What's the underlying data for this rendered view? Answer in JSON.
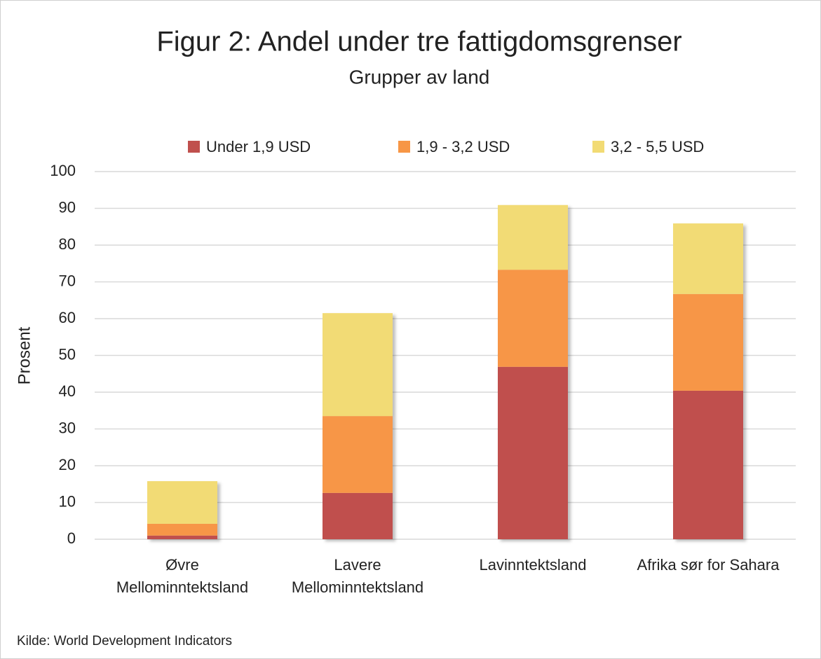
{
  "chart_data": {
    "type": "stacked_bar",
    "title": "Figur 2: Andel under tre fattigdomsgrenser",
    "subtitle": "Grupper av land",
    "y_label": "Prosent",
    "source": "Kilde: World Development Indicators",
    "categories": [
      "Øvre\nMellominntektsland",
      "Lavere\nMellominntektsland",
      "Lavinntektsland",
      "Afrika sør for Sahara"
    ],
    "series": [
      {
        "name": "Under 1,9 USD",
        "color": "#c0504d",
        "values": [
          1.0,
          12.6,
          46.9,
          40.4
        ]
      },
      {
        "name": "1,9 - 3,2 USD",
        "color": "#f79646",
        "values": [
          3.2,
          20.9,
          26.4,
          26.3
        ]
      },
      {
        "name": "3,2 - 5,5 USD",
        "color": "#f2db74",
        "values": [
          11.6,
          28.0,
          17.6,
          19.2
        ]
      }
    ],
    "ylim": [
      0,
      100
    ],
    "yticks": [
      0,
      10,
      20,
      30,
      40,
      50,
      60,
      70,
      80,
      90,
      100
    ],
    "grid": true,
    "legend": "top"
  }
}
